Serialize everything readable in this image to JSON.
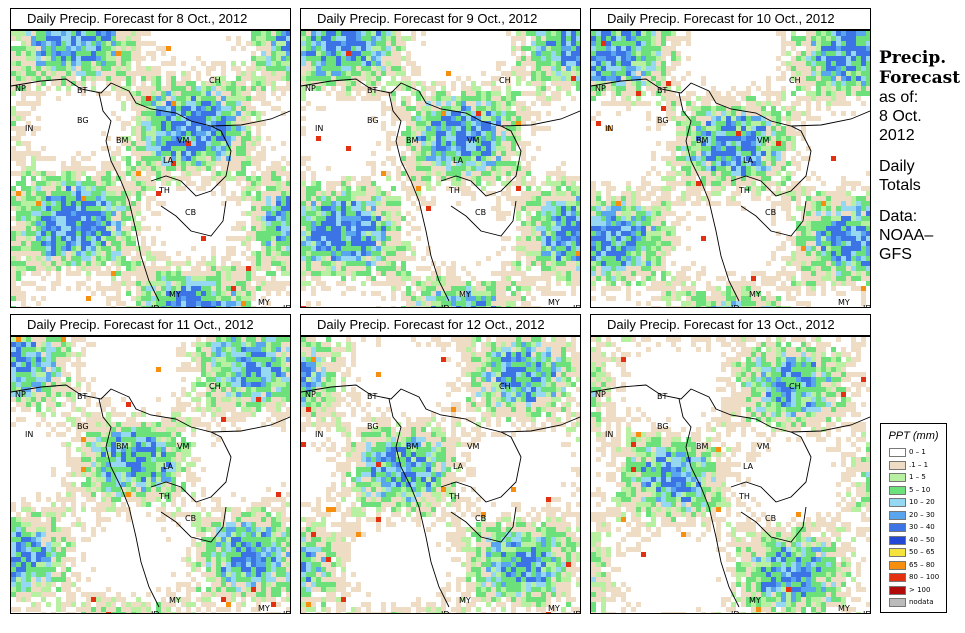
{
  "panels": [
    {
      "title": "Daily Precip. Forecast for  8 Oct., 2012",
      "wet": 0.62
    },
    {
      "title": "Daily Precip. Forecast for  9 Oct., 2012",
      "wet": 0.55
    },
    {
      "title": "Daily Precip. Forecast for  10 Oct., 2012",
      "wet": 0.5
    },
    {
      "title": "Daily Precip. Forecast for  11 Oct., 2012",
      "wet": 0.45
    },
    {
      "title": "Daily Precip. Forecast for  12 Oct., 2012",
      "wet": 0.42
    },
    {
      "title": "Daily Precip. Forecast for  13 Oct., 2012",
      "wet": 0.4
    }
  ],
  "map_labels": [
    "NP",
    "BT",
    "CH",
    "IN",
    "BG",
    "BM",
    "VM",
    "LA",
    "TH",
    "CB",
    "MY",
    "ID",
    "MY",
    "ID"
  ],
  "side": {
    "title_line1": "Precip.",
    "title_line2": "Forecast",
    "asof": "as of:",
    "date_line1": "8 Oct.",
    "date_line2": "2012",
    "daily1": "Daily",
    "daily2": "Totals",
    "data1": "Data:",
    "data2": "NOAA–",
    "data3": "GFS"
  },
  "legend": {
    "title": "PPT (mm)",
    "items": [
      {
        "label": "0 – 1",
        "color": "#ffffff"
      },
      {
        "label": ".1 – 1",
        "color": "#eedcc4"
      },
      {
        "label": "1 – 5",
        "color": "#b6f0a0"
      },
      {
        "label": "5 – 10",
        "color": "#6ce07a"
      },
      {
        "label": "10 – 20",
        "color": "#96d8f2"
      },
      {
        "label": "20 – 30",
        "color": "#5aa6ee"
      },
      {
        "label": "30 – 40",
        "color": "#3c74e6"
      },
      {
        "label": "40 – 50",
        "color": "#2448d6"
      },
      {
        "label": "50 – 65",
        "color": "#f6e23c"
      },
      {
        "label": "65 – 80",
        "color": "#f68e10"
      },
      {
        "label": "80 – 100",
        "color": "#e23010"
      },
      {
        "label": "> 100",
        "color": "#b00a0a"
      },
      {
        "label": "nodata",
        "color": "#bbbbbb"
      }
    ]
  }
}
